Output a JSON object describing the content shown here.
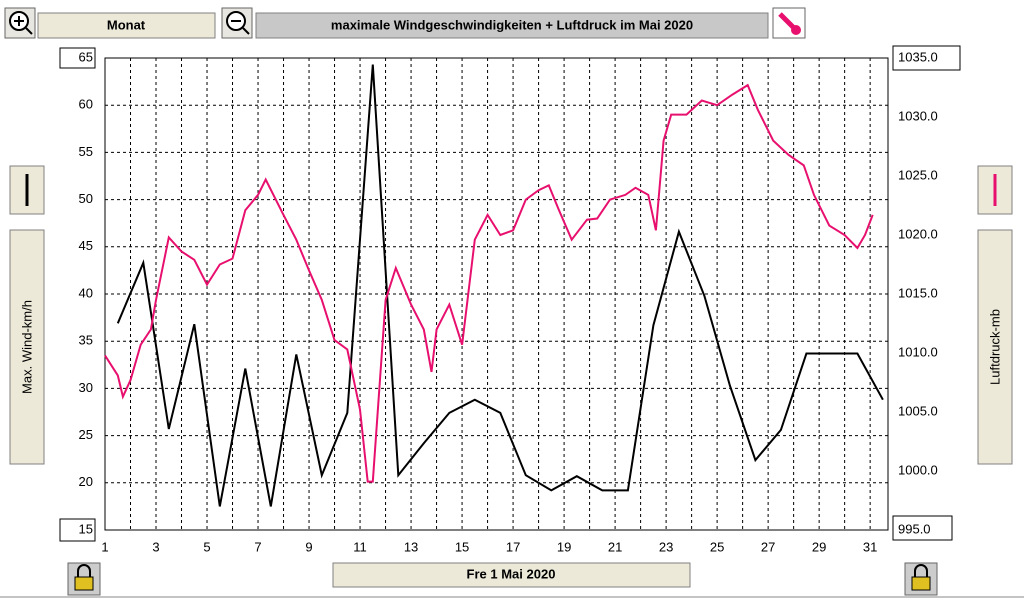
{
  "toolbar": {
    "period": "Monat",
    "title": "maximale Windgeschwindigkeiten + Luftdruck im Mai 2020"
  },
  "date_button": "Fre 1 Mai 2020",
  "chart_data": {
    "type": "line",
    "xlim": [
      1,
      31.7
    ],
    "xticks": [
      1,
      3,
      5,
      7,
      9,
      11,
      13,
      15,
      17,
      19,
      21,
      23,
      25,
      27,
      29,
      31
    ],
    "x_minor_ticks": [
      2,
      4,
      6,
      8,
      10,
      12,
      14,
      16,
      18,
      20,
      22,
      24,
      26,
      28,
      30
    ],
    "ylim": [
      15,
      65
    ],
    "yticks": [
      15,
      20,
      25,
      30,
      35,
      40,
      45,
      50,
      55,
      60,
      65
    ],
    "y2lim": [
      995,
      1035
    ],
    "y2ticks": [
      {
        "value": 995,
        "label": "995.0"
      },
      {
        "value": 1000,
        "label": "1000.0"
      },
      {
        "value": 1005,
        "label": "1005.0"
      },
      {
        "value": 1010,
        "label": "1010.0"
      },
      {
        "value": 1015,
        "label": "1015.0"
      },
      {
        "value": 1020,
        "label": "1020.0"
      },
      {
        "value": 1025,
        "label": "1025.0"
      },
      {
        "value": 1030,
        "label": "1030.0"
      },
      {
        "value": 1035,
        "label": "1035.0"
      }
    ],
    "ylabel": "Max. Wind-km/h",
    "y2label": "Luftdruck-mb",
    "grid": true,
    "series": [
      {
        "color": "#000000",
        "x": [
          1.5,
          2.5,
          3.5,
          4.5,
          5.5,
          6.5,
          7.5,
          8.5,
          9.5,
          10.5,
          11.5,
          12.5,
          13.5,
          14.5,
          15.5,
          16.5,
          17.5,
          18.5,
          19.5,
          20.5,
          21.5,
          22.5,
          23.5,
          24.5,
          25.5,
          26.5,
          27.5,
          28.5,
          29.5,
          30.5,
          31.5
        ],
        "values": [
          36.9,
          43.3,
          25.7,
          36.8,
          17.5,
          32.1,
          17.5,
          33.6,
          20.8,
          27.4,
          64.3,
          20.8,
          24.2,
          27.4,
          28.8,
          27.4,
          20.8,
          19.2,
          20.7,
          19.2,
          19.2,
          36.7,
          46.6,
          39.8,
          30.3,
          22.4,
          25.6,
          33.7,
          33.7,
          33.7,
          28.8
        ]
      },
      {
        "color": "#e8106e",
        "axis": "y2",
        "x": [
          1.0,
          1.5,
          1.7,
          2.0,
          2.4,
          2.8,
          3.0,
          3.5,
          4.0,
          4.5,
          5.0,
          5.5,
          6.0,
          6.5,
          7.0,
          7.3,
          8.0,
          8.5,
          9.0,
          9.5,
          10.0,
          10.5,
          11.0,
          11.3,
          11.5,
          12.0,
          12.4,
          13.0,
          13.5,
          13.8,
          14.0,
          14.5,
          15.0,
          15.5,
          16.0,
          16.5,
          17.0,
          17.5,
          18.0,
          18.4,
          18.8,
          19.3,
          19.9,
          20.3,
          20.8,
          21.4,
          21.8,
          22.3,
          22.6,
          22.9,
          23.2,
          23.8,
          24.4,
          25.0,
          25.6,
          26.2,
          26.6,
          27.2,
          27.8,
          28.4,
          28.8,
          29.4,
          30.0,
          30.5,
          30.8,
          31.1
        ],
        "values": [
          1009.8,
          1008.1,
          1006.3,
          1007.7,
          1010.7,
          1012,
          1014.5,
          1019.8,
          1018.6,
          1017.9,
          1015.8,
          1017.5,
          1018,
          1022.1,
          1023.4,
          1024.7,
          1021.7,
          1019.6,
          1017,
          1014.5,
          1011.1,
          1010.3,
          1005.2,
          999.1,
          999.1,
          1014.5,
          1017.2,
          1014.1,
          1012,
          1008.4,
          1012,
          1014.1,
          1010.7,
          1019.6,
          1021.7,
          1020,
          1020.4,
          1023,
          1023.8,
          1024.2,
          1022.1,
          1019.6,
          1021.3,
          1021.4,
          1023,
          1023.4,
          1024,
          1023.4,
          1020.4,
          1028,
          1030.2,
          1030.2,
          1031.4,
          1031,
          1031.9,
          1032.7,
          1030.6,
          1028,
          1026.8,
          1025.9,
          1023.4,
          1020.8,
          1020,
          1018.9,
          1020,
          1021.7
        ]
      }
    ]
  }
}
